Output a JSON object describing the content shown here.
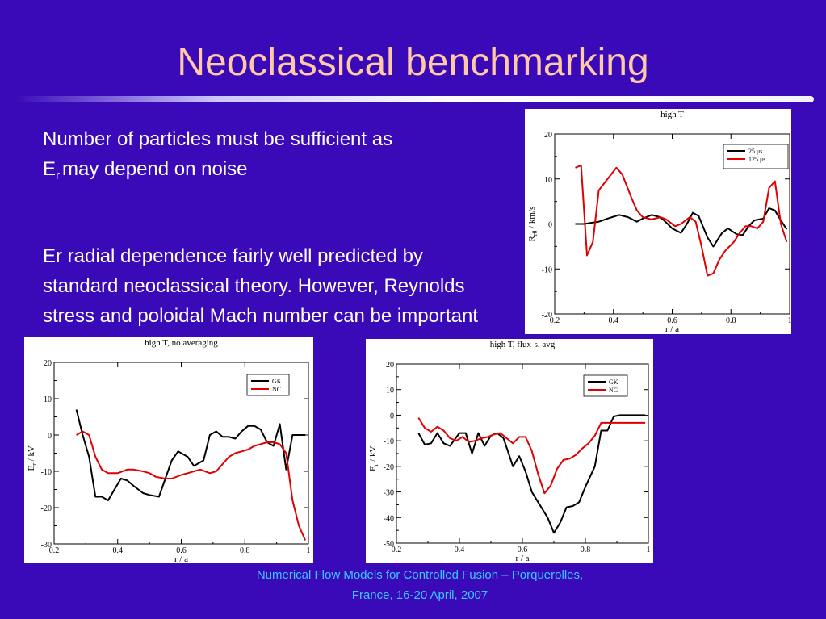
{
  "slide": {
    "title": "Neoclassical benchmarking",
    "line1a": "Number of particles must be sufficient as",
    "line1b_E": "E",
    "line1b_sub": "r",
    "line1b_rest": "may depend on noise",
    "para2": "Er radial dependence fairly well predicted by standard neoclassical theory. However, Reynolds stress and poloidal Mach number can be important",
    "footer1": "Numerical Flow Models for Controlled Fusion – Porquerolles,",
    "footer2": "France, 16-20 April,  2007"
  },
  "chart_data": [
    {
      "type": "line",
      "title": "high T",
      "xlabel": "r / a",
      "ylabel_main": "R",
      "ylabel_sub": "rθ",
      "ylabel_rest": " / km/s",
      "xlim": [
        0.2,
        1.0
      ],
      "ylim": [
        -20,
        20
      ],
      "xticks": [
        0.2,
        0.4,
        0.6,
        0.8,
        1.0
      ],
      "xtick_labels": [
        "0.2",
        "0.4",
        "0.6",
        "0.8",
        "1"
      ],
      "yticks": [
        -20,
        -10,
        0,
        10,
        20
      ],
      "ytick_labels": [
        "-20",
        "-10",
        "0",
        "10",
        "20"
      ],
      "legend_placement": "top-right",
      "series": [
        {
          "name": "25 μs",
          "color": "#000000",
          "x": [
            0.27,
            0.3,
            0.33,
            0.35,
            0.38,
            0.42,
            0.45,
            0.48,
            0.5,
            0.53,
            0.56,
            0.58,
            0.6,
            0.63,
            0.65,
            0.67,
            0.69,
            0.72,
            0.74,
            0.77,
            0.79,
            0.82,
            0.84,
            0.86,
            0.88,
            0.91,
            0.93,
            0.95,
            0.97,
            0.99
          ],
          "y": [
            0,
            0,
            0.3,
            0.5,
            1.2,
            2,
            1.5,
            0.5,
            1.2,
            2,
            1.5,
            0.3,
            -1,
            -2,
            0,
            2.5,
            1.8,
            -3,
            -5,
            -2,
            -1,
            -2.3,
            -2.5,
            -0.5,
            0.8,
            1.2,
            3.5,
            3,
            0.8,
            -1.2
          ]
        },
        {
          "name": "125 μs",
          "color": "#e00000",
          "x": [
            0.27,
            0.29,
            0.31,
            0.33,
            0.35,
            0.38,
            0.41,
            0.43,
            0.46,
            0.48,
            0.5,
            0.53,
            0.56,
            0.58,
            0.61,
            0.63,
            0.66,
            0.68,
            0.7,
            0.72,
            0.74,
            0.76,
            0.78,
            0.81,
            0.83,
            0.85,
            0.87,
            0.89,
            0.91,
            0.93,
            0.95,
            0.97,
            0.99
          ],
          "y": [
            12.5,
            13,
            -7,
            -4,
            7.5,
            10,
            12.5,
            11,
            6,
            3,
            1.5,
            1,
            1.5,
            1,
            -0.5,
            0,
            1.5,
            0.5,
            -5,
            -11.5,
            -11,
            -8,
            -6,
            -4,
            -2,
            -0.5,
            -0.5,
            -1,
            0.5,
            8,
            9.5,
            0,
            -4
          ]
        }
      ]
    },
    {
      "type": "line",
      "title": "high T, no averaging",
      "xlabel": "r / a",
      "ylabel_main": "E",
      "ylabel_sub": "r",
      "ylabel_rest": " / kV",
      "xlim": [
        0.2,
        1.0
      ],
      "ylim": [
        -30,
        20
      ],
      "xticks": [
        0.2,
        0.4,
        0.6,
        0.8,
        1.0
      ],
      "xtick_labels": [
        "0.2",
        "0.4",
        "0.6",
        "0.8",
        "1"
      ],
      "yticks": [
        -30,
        -20,
        -10,
        0,
        10,
        20
      ],
      "ytick_labels": [
        "-30",
        "-20",
        "-10",
        "0",
        "10",
        "20"
      ],
      "legend_placement": "top-right",
      "series": [
        {
          "name": "GK",
          "color": "#000000",
          "x": [
            0.27,
            0.29,
            0.31,
            0.33,
            0.35,
            0.37,
            0.39,
            0.41,
            0.43,
            0.45,
            0.48,
            0.5,
            0.53,
            0.55,
            0.57,
            0.59,
            0.62,
            0.64,
            0.67,
            0.69,
            0.71,
            0.73,
            0.75,
            0.77,
            0.79,
            0.81,
            0.83,
            0.85,
            0.87,
            0.89,
            0.91,
            0.93,
            0.95,
            0.97,
            0.99
          ],
          "y": [
            7,
            0,
            -6,
            -17,
            -17,
            -18,
            -15,
            -12,
            -12.5,
            -14,
            -16,
            -16.5,
            -17,
            -12,
            -7,
            -4.5,
            -6,
            -8.5,
            -7,
            0,
            1,
            -0.5,
            -0.5,
            -1,
            1,
            2.5,
            2.5,
            1.5,
            -2,
            -3,
            3,
            -9.5,
            0,
            0,
            0
          ]
        },
        {
          "name": "NC",
          "color": "#e00000",
          "x": [
            0.27,
            0.29,
            0.31,
            0.33,
            0.35,
            0.37,
            0.4,
            0.43,
            0.45,
            0.48,
            0.5,
            0.52,
            0.55,
            0.57,
            0.6,
            0.62,
            0.64,
            0.66,
            0.69,
            0.71,
            0.73,
            0.75,
            0.77,
            0.79,
            0.81,
            0.83,
            0.85,
            0.87,
            0.89,
            0.91,
            0.93,
            0.95,
            0.97,
            0.99
          ],
          "y": [
            0,
            1,
            0,
            -6,
            -9.5,
            -10.5,
            -10.5,
            -9.5,
            -9.5,
            -10,
            -10.5,
            -11.5,
            -12,
            -12,
            -11,
            -10.5,
            -10,
            -9.5,
            -10.5,
            -10,
            -8,
            -6,
            -5,
            -4.5,
            -4,
            -3,
            -2.5,
            -2,
            -2,
            -2.5,
            -5,
            -18,
            -25,
            -29
          ]
        }
      ]
    },
    {
      "type": "line",
      "title": "high T, flux-s. avg",
      "xlabel": "r / a",
      "ylabel_main": "E",
      "ylabel_sub": "r",
      "ylabel_rest": " / kV",
      "xlim": [
        0.2,
        1.0
      ],
      "ylim": [
        -50,
        20
      ],
      "xticks": [
        0.2,
        0.4,
        0.6,
        0.8,
        1.0
      ],
      "xtick_labels": [
        "0.2",
        "0.4",
        "0.6",
        "0.8",
        "1"
      ],
      "yticks": [
        -50,
        -40,
        -30,
        -20,
        -10,
        0,
        10,
        20
      ],
      "ytick_labels": [
        "-50",
        "-40",
        "-30",
        "-20",
        "-10",
        "0",
        "10",
        "20"
      ],
      "legend_placement": "top-right",
      "series": [
        {
          "name": "GK",
          "color": "#000000",
          "x": [
            0.27,
            0.29,
            0.31,
            0.33,
            0.35,
            0.37,
            0.4,
            0.42,
            0.44,
            0.46,
            0.48,
            0.5,
            0.52,
            0.54,
            0.57,
            0.59,
            0.61,
            0.63,
            0.65,
            0.68,
            0.7,
            0.72,
            0.74,
            0.76,
            0.78,
            0.8,
            0.83,
            0.85,
            0.87,
            0.89,
            0.91,
            0.93,
            0.95,
            0.97,
            0.99
          ],
          "y": [
            -7,
            -11.5,
            -11,
            -7,
            -11,
            -12,
            -7,
            -7,
            -15,
            -7,
            -12,
            -8,
            -7,
            -9,
            -20,
            -16,
            -22,
            -30,
            -34,
            -40,
            -46,
            -42,
            -36,
            -35.5,
            -34,
            -28,
            -20,
            -6,
            -6,
            -0.5,
            0,
            0,
            0,
            0,
            0
          ]
        },
        {
          "name": "NC",
          "color": "#e00000",
          "x": [
            0.27,
            0.29,
            0.31,
            0.33,
            0.35,
            0.37,
            0.39,
            0.41,
            0.43,
            0.45,
            0.47,
            0.49,
            0.51,
            0.53,
            0.55,
            0.57,
            0.59,
            0.61,
            0.63,
            0.65,
            0.67,
            0.69,
            0.71,
            0.73,
            0.75,
            0.77,
            0.79,
            0.81,
            0.83,
            0.85,
            0.87,
            0.89,
            0.91,
            0.93,
            0.95,
            0.97,
            0.99
          ],
          "y": [
            -1,
            -5,
            -6.5,
            -4.5,
            -6,
            -9,
            -10,
            -8.5,
            -10.5,
            -10,
            -9,
            -8.5,
            -7.5,
            -7,
            -9,
            -11,
            -8.5,
            -8.5,
            -14,
            -23,
            -30.5,
            -27.5,
            -21,
            -17.5,
            -17,
            -15.5,
            -13,
            -11,
            -8,
            -3,
            -3,
            -3,
            -3,
            -3,
            -3,
            -3,
            -3
          ]
        }
      ]
    }
  ]
}
